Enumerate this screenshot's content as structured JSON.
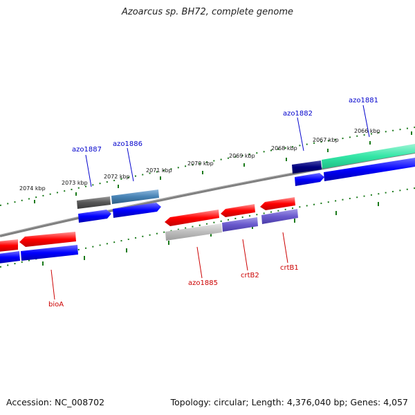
{
  "title": "Azoarcus sp. BH72, complete genome",
  "footer": {
    "accession": "Accession: NC_008702",
    "summary": "Topology: circular; Length: 4,376,040 bp; Genes: 4,057"
  },
  "tick_labels": [
    "2074 kbp",
    "2073 kbp",
    "2072 kbp",
    "2071 kbp",
    "2070 kbp",
    "2069 kbp",
    "2068 kbp",
    "2067 kbp",
    "2066 kbp"
  ],
  "genes_top": [
    "azo1887",
    "azo1886",
    "azo1882",
    "azo1881"
  ],
  "genes_bottom": [
    "bioA",
    "azo1885",
    "crtB2",
    "crtB1"
  ],
  "colors": {
    "top_label": "#0000cc",
    "bottom_label": "#cc0000",
    "tick": "#1a7a1a",
    "backbone": "#808080",
    "cds_blue": "#0000ff",
    "red_feature": "#ff0000",
    "slate_feature": "#6a5acd",
    "teal_feature": "#33e6a6",
    "navy_feature": "#000080",
    "steel_feature": "#4682b4",
    "gray_feature": "#555555",
    "light_gray_feature": "#bdbdbd"
  }
}
